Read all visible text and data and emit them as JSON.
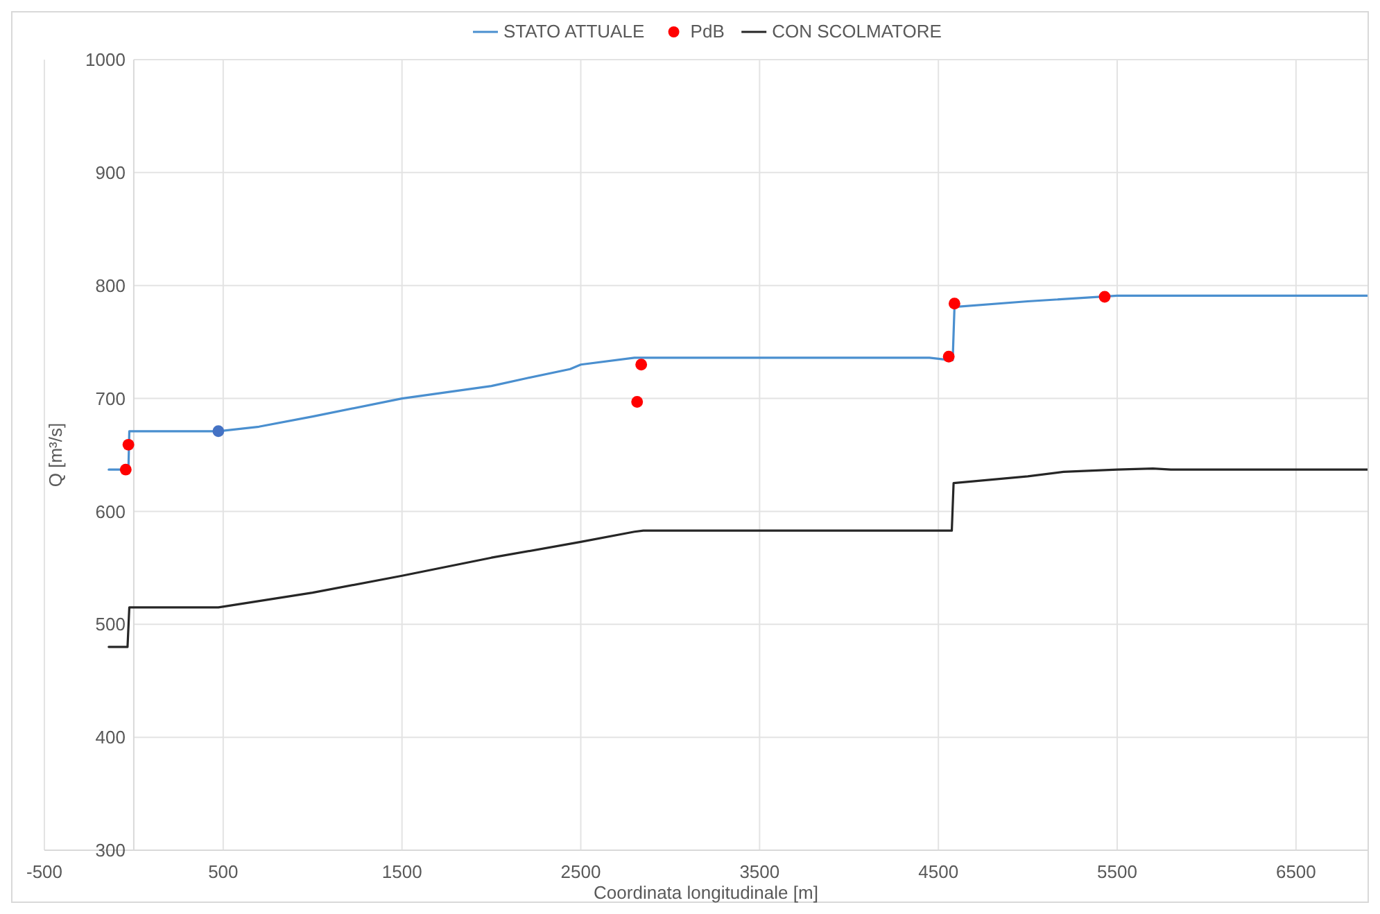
{
  "chart_data": {
    "type": "line",
    "xlabel": "Coordinata longitudinale [m]",
    "ylabel": "Q [m³/s]",
    "xlim": [
      -500,
      6900
    ],
    "xticks": [
      -500,
      500,
      1500,
      2500,
      3500,
      4500,
      5500,
      6500
    ],
    "ylim": [
      300,
      1000
    ],
    "yticks": [
      300,
      400,
      500,
      600,
      700,
      800,
      900,
      1000
    ],
    "grid": true,
    "legend": "top",
    "marker": "none",
    "line_style": "solid",
    "series": [
      {
        "name": "STATO ATTUALE",
        "color": "#4a8fcf",
        "x": [
          -140,
          -30,
          -25,
          473,
          700,
          1000,
          1500,
          2000,
          2200,
          2440,
          2500,
          2800,
          3500,
          4450,
          4560,
          4580,
          4590,
          5000,
          5500,
          6000,
          6900
        ],
        "values": [
          637,
          637,
          671,
          671,
          675,
          684,
          700,
          711,
          718,
          726,
          730,
          736,
          736,
          736,
          734,
          734,
          781,
          786,
          791,
          791,
          791
        ]
      },
      {
        "name": "PdB",
        "type": "scatter",
        "marker": "circle",
        "color": "#ff0000",
        "colors": [
          "#ff0000",
          "#ff0000",
          "#4472c4",
          "#ff0000",
          "#ff0000",
          "#ff0000",
          "#ff0000",
          "#ff0000"
        ],
        "x": [
          -45,
          -30,
          473,
          2815,
          2838,
          4558,
          4590,
          5430
        ],
        "values": [
          637,
          659,
          671,
          697,
          730,
          737,
          784,
          790
        ]
      },
      {
        "name": "CON SCOLMATORE",
        "color": "#262626",
        "x": [
          -140,
          -35,
          -25,
          473,
          1000,
          1500,
          2000,
          2500,
          2800,
          2850,
          4450,
          4560,
          4575,
          4585,
          5000,
          5200,
          5500,
          5700,
          5800,
          6900
        ],
        "values": [
          480,
          480,
          515,
          515,
          528,
          543,
          559,
          573,
          582,
          583,
          583,
          583,
          583,
          625,
          631,
          635,
          637,
          638,
          637,
          637
        ]
      }
    ]
  }
}
